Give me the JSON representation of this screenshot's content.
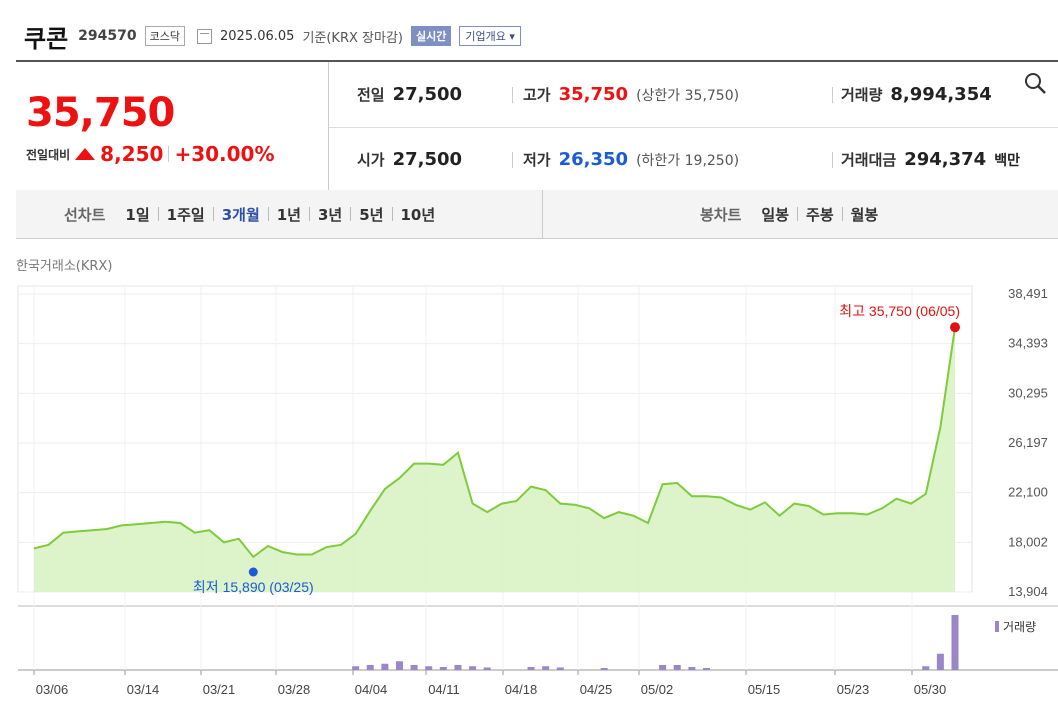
{
  "header": {
    "name": "쿠콘",
    "code": "294570",
    "market": "코스닥",
    "date": "2025.06.05",
    "basis": "기준(KRX 장마감)",
    "realtime_btn": "실시간",
    "company_btn": "기업개요 ▾"
  },
  "price": {
    "current": "35,750",
    "change_label": "전일대비",
    "change": "8,250",
    "change_pct": "+30.00%",
    "up_color": "#e11111"
  },
  "info": {
    "prev_label": "전일",
    "prev": "27,500",
    "high_label": "고가",
    "high": "35,750",
    "upper_limit": "(상한가 35,750)",
    "volume_label": "거래량",
    "volume": "8,994,354",
    "open_label": "시가",
    "open": "27,500",
    "low_label": "저가",
    "low": "26,350",
    "lower_limit": "(하한가 19,250)",
    "amount_label": "거래대금",
    "amount": "294,374",
    "amount_unit": "백만"
  },
  "tabs": {
    "line_label": "선차트",
    "line_periods": [
      "1일",
      "1주일",
      "3개월",
      "1년",
      "3년",
      "5년",
      "10년"
    ],
    "active_period": "3개월",
    "candle_label": "봉차트",
    "candle_periods": [
      "일봉",
      "주봉",
      "월봉"
    ]
  },
  "source": "한국거래소(KRX)",
  "chart_data": {
    "type": "area",
    "y_ticks": [
      "38,491",
      "34,393",
      "30,295",
      "26,197",
      "22,100",
      "18,002",
      "13,904"
    ],
    "y_tick_values": [
      38491,
      34393,
      30295,
      26197,
      22100,
      18002,
      13904
    ],
    "x_labels": [
      "03/06",
      "03/14",
      "03/21",
      "03/28",
      "04/04",
      "04/11",
      "04/18",
      "04/25",
      "05/02",
      "05/15",
      "05/23",
      "05/30"
    ],
    "max_annotation": "최고 35,750 (06/05)",
    "min_annotation": "최저 15,890 (03/25)",
    "volume_legend": "거래량",
    "line_color": "#7ccc3c",
    "fill_color": "#d9f2c4",
    "max_color": "#e11111",
    "min_color": "#1a5bd6",
    "volume_color": "#9a86c8",
    "series": [
      {
        "values": [
          17500,
          17800,
          18800,
          18900,
          19000,
          19100,
          19400,
          19500,
          19600,
          19700,
          19600,
          18800,
          19000,
          18000,
          18300,
          16800,
          17700,
          17200,
          17000,
          17000,
          17600,
          17800,
          18700,
          20600,
          22400,
          23300,
          24500,
          24500,
          24400,
          25400,
          21200,
          20500,
          21200,
          21400,
          22600,
          22300,
          21200,
          21100,
          20800,
          20000,
          20500,
          20200,
          19600,
          22800,
          22900,
          21800,
          21800,
          21700,
          21100,
          20700,
          21300,
          20200,
          21200,
          21000,
          20300,
          20400,
          20400,
          20300,
          20800,
          21600,
          21200,
          22000,
          27500,
          35750
        ]
      }
    ],
    "volume": [
      0,
      0,
      0,
      0,
      0,
      0,
      0,
      0,
      0,
      0,
      0,
      0,
      0,
      0,
      0,
      0,
      0,
      0,
      0,
      0,
      0,
      0,
      0.15,
      0.2,
      0.25,
      0.35,
      0.2,
      0.15,
      0.12,
      0.2,
      0.15,
      0.1,
      0,
      0,
      0.12,
      0.15,
      0.1,
      0,
      0,
      0.08,
      0,
      0,
      0,
      0.2,
      0.2,
      0.12,
      0.08,
      0,
      0,
      0,
      0,
      0,
      0,
      0,
      0,
      0,
      0,
      0,
      0,
      0,
      0,
      0.15,
      0.65,
      2.2
    ]
  }
}
